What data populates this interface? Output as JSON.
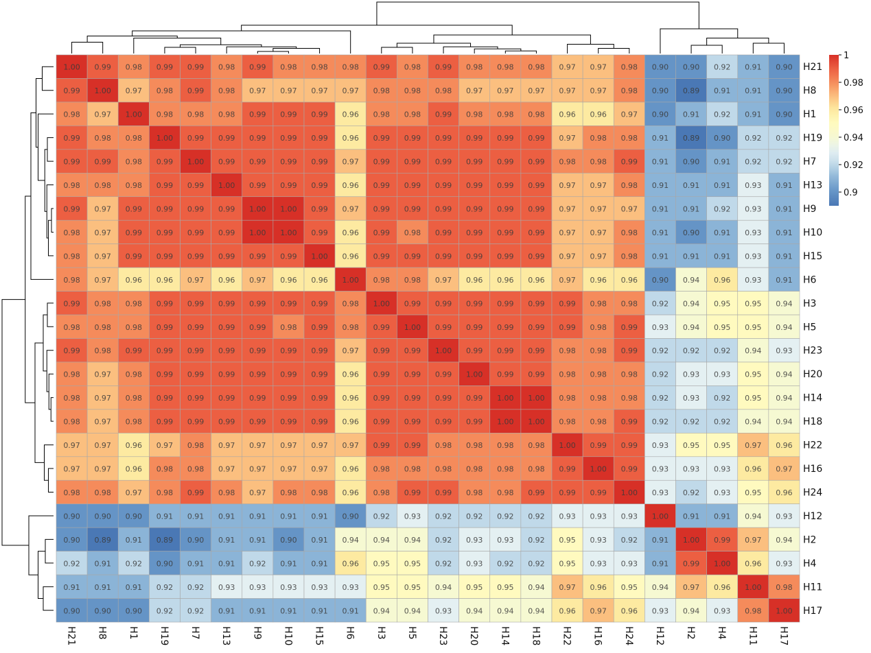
{
  "chart_data": {
    "type": "heatmap",
    "title": "",
    "labels": [
      "H21",
      "H8",
      "H1",
      "H19",
      "H7",
      "H13",
      "H9",
      "H10",
      "H15",
      "H6",
      "H3",
      "H5",
      "H23",
      "H20",
      "H14",
      "H18",
      "H22",
      "H16",
      "H24",
      "H12",
      "H2",
      "H4",
      "H11",
      "H17"
    ],
    "values": [
      [
        1.0,
        0.99,
        0.98,
        0.99,
        0.99,
        0.98,
        0.99,
        0.98,
        0.98,
        0.98,
        0.99,
        0.98,
        0.99,
        0.98,
        0.98,
        0.98,
        0.97,
        0.97,
        0.98,
        0.9,
        0.9,
        0.92,
        0.91,
        0.9
      ],
      [
        0.99,
        1.0,
        0.97,
        0.98,
        0.99,
        0.98,
        0.97,
        0.97,
        0.97,
        0.97,
        0.98,
        0.98,
        0.98,
        0.97,
        0.97,
        0.97,
        0.97,
        0.97,
        0.98,
        0.9,
        0.89,
        0.91,
        0.91,
        0.9
      ],
      [
        0.98,
        0.97,
        1.0,
        0.98,
        0.98,
        0.98,
        0.99,
        0.99,
        0.99,
        0.96,
        0.98,
        0.98,
        0.99,
        0.98,
        0.98,
        0.98,
        0.96,
        0.96,
        0.97,
        0.9,
        0.91,
        0.92,
        0.91,
        0.9
      ],
      [
        0.99,
        0.98,
        0.98,
        1.0,
        0.99,
        0.99,
        0.99,
        0.99,
        0.99,
        0.96,
        0.99,
        0.99,
        0.99,
        0.99,
        0.99,
        0.99,
        0.97,
        0.98,
        0.98,
        0.91,
        0.89,
        0.9,
        0.92,
        0.92
      ],
      [
        0.99,
        0.99,
        0.98,
        0.99,
        1.0,
        0.99,
        0.99,
        0.99,
        0.99,
        0.97,
        0.99,
        0.99,
        0.99,
        0.99,
        0.99,
        0.99,
        0.98,
        0.98,
        0.99,
        0.91,
        0.9,
        0.91,
        0.92,
        0.92
      ],
      [
        0.98,
        0.98,
        0.98,
        0.99,
        0.99,
        1.0,
        0.99,
        0.99,
        0.99,
        0.96,
        0.99,
        0.99,
        0.99,
        0.99,
        0.99,
        0.99,
        0.97,
        0.97,
        0.98,
        0.91,
        0.91,
        0.91,
        0.93,
        0.91
      ],
      [
        0.99,
        0.97,
        0.99,
        0.99,
        0.99,
        0.99,
        1.0,
        1.0,
        0.99,
        0.97,
        0.99,
        0.99,
        0.99,
        0.99,
        0.99,
        0.99,
        0.97,
        0.97,
        0.97,
        0.91,
        0.91,
        0.92,
        0.93,
        0.91
      ],
      [
        0.98,
        0.97,
        0.99,
        0.99,
        0.99,
        0.99,
        1.0,
        1.0,
        0.99,
        0.96,
        0.99,
        0.98,
        0.99,
        0.99,
        0.99,
        0.99,
        0.97,
        0.97,
        0.98,
        0.91,
        0.9,
        0.91,
        0.93,
        0.91
      ],
      [
        0.98,
        0.97,
        0.99,
        0.99,
        0.99,
        0.99,
        0.99,
        0.99,
        1.0,
        0.96,
        0.99,
        0.99,
        0.99,
        0.99,
        0.99,
        0.99,
        0.97,
        0.97,
        0.98,
        0.91,
        0.91,
        0.91,
        0.93,
        0.91
      ],
      [
        0.98,
        0.97,
        0.96,
        0.96,
        0.97,
        0.96,
        0.97,
        0.96,
        0.96,
        1.0,
        0.98,
        0.98,
        0.97,
        0.96,
        0.96,
        0.96,
        0.97,
        0.96,
        0.96,
        0.9,
        0.94,
        0.96,
        0.93,
        0.91
      ],
      [
        0.99,
        0.98,
        0.98,
        0.99,
        0.99,
        0.99,
        0.99,
        0.99,
        0.99,
        0.98,
        1.0,
        0.99,
        0.99,
        0.99,
        0.99,
        0.99,
        0.99,
        0.98,
        0.98,
        0.92,
        0.94,
        0.95,
        0.95,
        0.94
      ],
      [
        0.98,
        0.98,
        0.98,
        0.99,
        0.99,
        0.99,
        0.99,
        0.98,
        0.99,
        0.98,
        0.99,
        1.0,
        0.99,
        0.99,
        0.99,
        0.99,
        0.99,
        0.98,
        0.99,
        0.93,
        0.94,
        0.95,
        0.95,
        0.94
      ],
      [
        0.99,
        0.98,
        0.99,
        0.99,
        0.99,
        0.99,
        0.99,
        0.99,
        0.99,
        0.97,
        0.99,
        0.99,
        1.0,
        0.99,
        0.99,
        0.99,
        0.98,
        0.98,
        0.99,
        0.92,
        0.92,
        0.92,
        0.94,
        0.93
      ],
      [
        0.98,
        0.97,
        0.98,
        0.99,
        0.99,
        0.99,
        0.99,
        0.99,
        0.99,
        0.96,
        0.99,
        0.99,
        0.99,
        1.0,
        0.99,
        0.99,
        0.98,
        0.98,
        0.98,
        0.92,
        0.93,
        0.93,
        0.95,
        0.94
      ],
      [
        0.98,
        0.97,
        0.98,
        0.99,
        0.99,
        0.99,
        0.99,
        0.99,
        0.99,
        0.96,
        0.99,
        0.99,
        0.99,
        0.99,
        1.0,
        1.0,
        0.98,
        0.98,
        0.98,
        0.92,
        0.93,
        0.92,
        0.95,
        0.94
      ],
      [
        0.98,
        0.97,
        0.98,
        0.99,
        0.99,
        0.99,
        0.99,
        0.99,
        0.99,
        0.96,
        0.99,
        0.99,
        0.99,
        0.99,
        1.0,
        1.0,
        0.98,
        0.98,
        0.99,
        0.92,
        0.92,
        0.92,
        0.94,
        0.94
      ],
      [
        0.97,
        0.97,
        0.96,
        0.97,
        0.98,
        0.97,
        0.97,
        0.97,
        0.97,
        0.97,
        0.99,
        0.99,
        0.98,
        0.98,
        0.98,
        0.98,
        1.0,
        0.99,
        0.99,
        0.93,
        0.95,
        0.95,
        0.97,
        0.96
      ],
      [
        0.97,
        0.97,
        0.96,
        0.98,
        0.98,
        0.97,
        0.97,
        0.97,
        0.97,
        0.96,
        0.98,
        0.98,
        0.98,
        0.98,
        0.98,
        0.98,
        0.99,
        1.0,
        0.99,
        0.93,
        0.93,
        0.93,
        0.96,
        0.97
      ],
      [
        0.98,
        0.98,
        0.97,
        0.98,
        0.99,
        0.98,
        0.97,
        0.98,
        0.98,
        0.96,
        0.98,
        0.99,
        0.99,
        0.98,
        0.98,
        0.99,
        0.99,
        0.99,
        1.0,
        0.93,
        0.92,
        0.93,
        0.95,
        0.96
      ],
      [
        0.9,
        0.9,
        0.9,
        0.91,
        0.91,
        0.91,
        0.91,
        0.91,
        0.91,
        0.9,
        0.92,
        0.93,
        0.92,
        0.92,
        0.92,
        0.92,
        0.93,
        0.93,
        0.93,
        1.0,
        0.91,
        0.91,
        0.94,
        0.93
      ],
      [
        0.9,
        0.89,
        0.91,
        0.89,
        0.9,
        0.91,
        0.91,
        0.9,
        0.91,
        0.94,
        0.94,
        0.94,
        0.92,
        0.93,
        0.93,
        0.92,
        0.95,
        0.93,
        0.92,
        0.91,
        1.0,
        0.99,
        0.97,
        0.94
      ],
      [
        0.92,
        0.91,
        0.92,
        0.9,
        0.91,
        0.91,
        0.92,
        0.91,
        0.91,
        0.96,
        0.95,
        0.95,
        0.92,
        0.93,
        0.92,
        0.92,
        0.95,
        0.93,
        0.93,
        0.91,
        0.99,
        1.0,
        0.96,
        0.93
      ],
      [
        0.91,
        0.91,
        0.91,
        0.92,
        0.92,
        0.93,
        0.93,
        0.93,
        0.93,
        0.93,
        0.95,
        0.95,
        0.94,
        0.95,
        0.95,
        0.94,
        0.97,
        0.96,
        0.95,
        0.94,
        0.97,
        0.96,
        1.0,
        0.98
      ],
      [
        0.9,
        0.9,
        0.9,
        0.92,
        0.92,
        0.91,
        0.91,
        0.91,
        0.91,
        0.91,
        0.94,
        0.94,
        0.93,
        0.94,
        0.94,
        0.94,
        0.96,
        0.97,
        0.96,
        0.93,
        0.94,
        0.93,
        0.98,
        1.0
      ]
    ],
    "colorbar": {
      "colormap": "RdYlBu_r",
      "range": [
        0.89,
        1.0
      ],
      "ticks": [
        1,
        0.98,
        0.96,
        0.94,
        0.92,
        0.9
      ],
      "tick_labels": [
        "1",
        "0.98",
        "0.96",
        "0.94",
        "0.92",
        "0.9"
      ],
      "low_color": "#4a78b5",
      "mid_color": "#ffffbf",
      "high_color": "#d73027"
    },
    "dendrograms": [
      "top",
      "left"
    ],
    "annotations": "cell values shown with 2 decimals"
  }
}
